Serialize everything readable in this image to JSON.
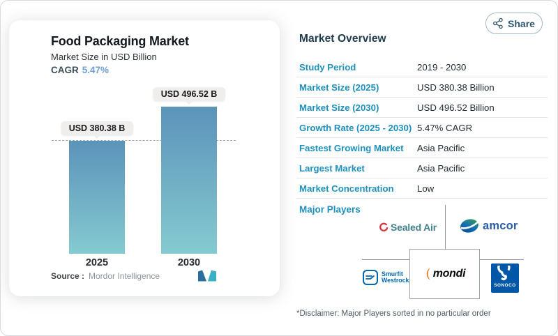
{
  "share": {
    "label": "Share"
  },
  "chart_card": {
    "title": "Food Packaging Market",
    "subtitle": "Market Size in USD Billion",
    "cagr_label": "CAGR",
    "cagr_value": "5.47%",
    "source_label": "Source :",
    "source_value": "Mordor Intelligence"
  },
  "chart_data": {
    "type": "bar",
    "title": "Food Packaging Market",
    "subtitle": "Market Size in USD Billion",
    "categories": [
      "2025",
      "2030"
    ],
    "values": [
      380.38,
      496.52
    ],
    "unit": "USD Billion",
    "bar_labels": [
      "USD 380.38 B",
      "USD 496.52 B"
    ],
    "cagr_percent": 5.47,
    "reference_line": 380.38,
    "ylim": [
      0,
      530
    ],
    "grid": false,
    "legend": "none",
    "bar_gradient_top": "#5c93ba",
    "bar_gradient_bottom": "#85cad0"
  },
  "overview": {
    "heading": "Market Overview",
    "rows": [
      {
        "label": "Study Period",
        "value": "2019 - 2030"
      },
      {
        "label": "Market Size (2025)",
        "value": "USD 380.38 Billion"
      },
      {
        "label": "Market Size (2030)",
        "value": "USD 496.52 Billion"
      },
      {
        "label": "Growth Rate (2025 - 2030)",
        "value": "5.47% CAGR"
      },
      {
        "label": "Fastest Growing Market",
        "value": "Asia Pacific"
      },
      {
        "label": "Largest Market",
        "value": "Asia Pacific"
      },
      {
        "label": "Market Concentration",
        "value": "Low"
      }
    ],
    "major_players_label": "Major Players",
    "players": {
      "sealed_air": "Sealed Air",
      "amcor": "amcor",
      "smurfit_line1": "Smurfit",
      "smurfit_line2": "Westrock",
      "mondi": "mondi",
      "sonoco": "SONOCO"
    },
    "disclaimer": "*Disclaimer: Major Players sorted in no particular order"
  },
  "colors": {
    "accent_blue": "#1f90bd",
    "heading_navy": "#1e3b4d",
    "cagr_value_blue": "#6f9ed2",
    "share_border": "#9db8c6",
    "separator": "#e4e5e8"
  }
}
